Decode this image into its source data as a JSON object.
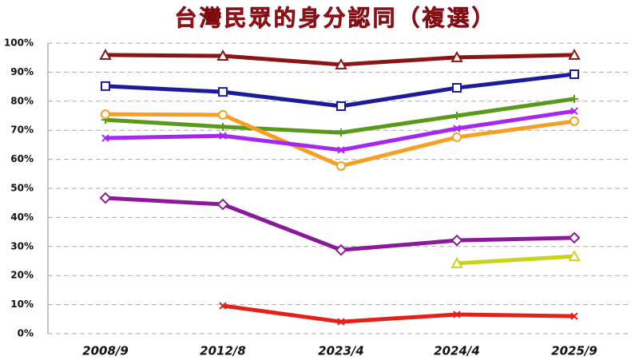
{
  "chart_data": {
    "type": "line",
    "title": "台灣民眾的身分認同（複選）",
    "categories": [
      "2008/9",
      "2012/8",
      "2023/4",
      "2024/4",
      "2025/9"
    ],
    "ylim": [
      0,
      100
    ],
    "yticks": [
      {
        "value": 0,
        "label": "0%"
      },
      {
        "value": 10,
        "label": "10%"
      },
      {
        "value": 20,
        "label": "20%"
      },
      {
        "value": 30,
        "label": "30%"
      },
      {
        "value": 40,
        "label": "40%"
      },
      {
        "value": 50,
        "label": "50%"
      },
      {
        "value": 60,
        "label": "60%"
      },
      {
        "value": 70,
        "label": "70%"
      },
      {
        "value": 80,
        "label": "80%"
      },
      {
        "value": 90,
        "label": "90%"
      },
      {
        "value": 100,
        "label": "100%"
      }
    ],
    "grid": true,
    "series": [
      {
        "color": "#8b1414",
        "marker": "triangle",
        "values": [
          95.9,
          95.6,
          92.6,
          95.1,
          95.9
        ]
      },
      {
        "color": "#1c1c9a",
        "marker": "square",
        "values": [
          85.2,
          83.2,
          78.3,
          84.6,
          89.3
        ]
      },
      {
        "color": "#5a9a1a",
        "marker": "plus",
        "values": [
          73.6,
          71.2,
          69.2,
          75.0,
          80.8
        ]
      },
      {
        "color": "#f5a020",
        "marker": "circle",
        "values": [
          75.5,
          75.3,
          57.7,
          67.6,
          73.1
        ]
      },
      {
        "color": "#a428f0",
        "marker": "cross",
        "values": [
          67.3,
          68.1,
          63.2,
          70.6,
          76.6
        ]
      },
      {
        "color": "#8a1a9a",
        "marker": "diamond",
        "values": [
          46.7,
          44.5,
          28.8,
          32.1,
          33.0
        ]
      },
      {
        "color": "#c8d41a",
        "marker": "triangle",
        "values": [
          null,
          null,
          null,
          24.2,
          26.6
        ]
      },
      {
        "color": "#e4201a",
        "marker": "cross",
        "values": [
          null,
          9.6,
          4.1,
          6.6,
          6.0
        ]
      }
    ]
  }
}
